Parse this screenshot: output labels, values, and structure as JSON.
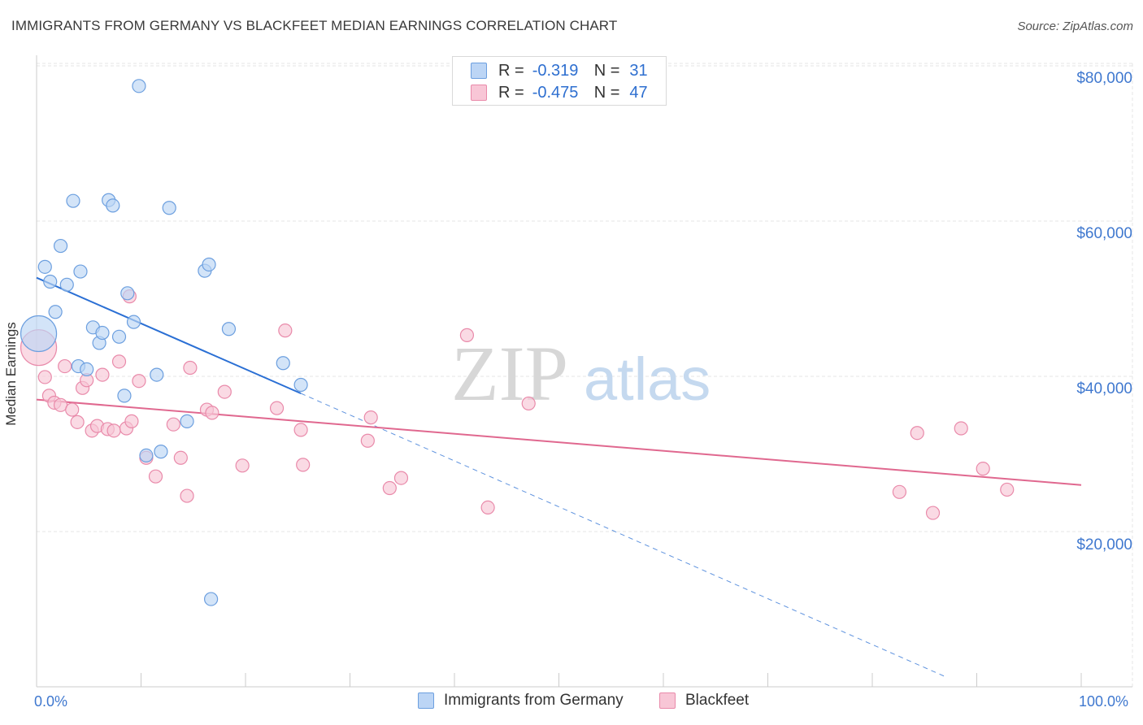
{
  "title": "IMMIGRANTS FROM GERMANY VS BLACKFEET MEDIAN EARNINGS CORRELATION CHART",
  "source": "Source: ZipAtlas.com",
  "watermark": {
    "zip": "ZIP",
    "atlas": "atlas"
  },
  "legend": {
    "r_label": "R =",
    "n_label": "N =",
    "series": [
      {
        "r": "-0.319",
        "n": "31"
      },
      {
        "r": "-0.475",
        "n": "47"
      }
    ]
  },
  "colors": {
    "blue_fill": "#bcd5f5",
    "blue_stroke": "#6c9fdf",
    "blue_line": "#2a6fd4",
    "pink_fill": "#f8c6d6",
    "pink_stroke": "#e98aaa",
    "pink_line": "#e0688f",
    "grid": "#e4e4e4",
    "axis_text": "#3f78cf"
  },
  "chart_data": {
    "type": "scatter",
    "title": "IMMIGRANTS FROM GERMANY VS BLACKFEET MEDIAN EARNINGS CORRELATION CHART",
    "xlabel": "",
    "ylabel": "Median Earnings",
    "xlim": [
      0,
      100
    ],
    "ylim": [
      0,
      82000
    ],
    "x_tick_labels": [
      "0.0%",
      "100.0%"
    ],
    "y_ticks": [
      20000,
      40000,
      60000,
      80000
    ],
    "y_tick_labels": [
      "$20,000",
      "$40,000",
      "$60,000",
      "$80,000"
    ],
    "grid": true,
    "legend_position": "top-center",
    "series": [
      {
        "name": "Immigrants from Germany",
        "color": "blue",
        "points": [
          {
            "x": 0.2,
            "y": 45500,
            "big": true
          },
          {
            "x": 0.8,
            "y": 54100
          },
          {
            "x": 1.3,
            "y": 52200
          },
          {
            "x": 1.8,
            "y": 48300
          },
          {
            "x": 2.3,
            "y": 56800
          },
          {
            "x": 2.9,
            "y": 51800
          },
          {
            "x": 3.5,
            "y": 62600
          },
          {
            "x": 4.2,
            "y": 53500
          },
          {
            "x": 4.0,
            "y": 41300
          },
          {
            "x": 4.8,
            "y": 40900
          },
          {
            "x": 5.4,
            "y": 46300
          },
          {
            "x": 6.0,
            "y": 44300
          },
          {
            "x": 6.3,
            "y": 45600
          },
          {
            "x": 6.9,
            "y": 62700
          },
          {
            "x": 7.3,
            "y": 62000
          },
          {
            "x": 7.9,
            "y": 45100
          },
          {
            "x": 8.4,
            "y": 37500
          },
          {
            "x": 8.7,
            "y": 50700
          },
          {
            "x": 9.3,
            "y": 47000
          },
          {
            "x": 9.8,
            "y": 77400
          },
          {
            "x": 10.5,
            "y": 29800
          },
          {
            "x": 11.5,
            "y": 40200
          },
          {
            "x": 11.9,
            "y": 30300
          },
          {
            "x": 12.7,
            "y": 61700
          },
          {
            "x": 14.4,
            "y": 34200
          },
          {
            "x": 16.1,
            "y": 53600
          },
          {
            "x": 16.5,
            "y": 54400
          },
          {
            "x": 16.7,
            "y": 11300
          },
          {
            "x": 18.4,
            "y": 46100
          },
          {
            "x": 23.6,
            "y": 41700
          },
          {
            "x": 25.3,
            "y": 38900
          }
        ],
        "trendline": {
          "x0": 0,
          "y0": 52700,
          "x1": 25.3,
          "y1": 37800,
          "dashed_to_x": 87,
          "dashed_to_y": 1300
        }
      },
      {
        "name": "Blackfeet",
        "color": "pink",
        "points": [
          {
            "x": 0.2,
            "y": 43700,
            "big": true
          },
          {
            "x": 0.8,
            "y": 39900
          },
          {
            "x": 1.2,
            "y": 37500
          },
          {
            "x": 1.7,
            "y": 36600
          },
          {
            "x": 2.3,
            "y": 36300
          },
          {
            "x": 2.7,
            "y": 41300
          },
          {
            "x": 3.4,
            "y": 35700
          },
          {
            "x": 3.9,
            "y": 34100
          },
          {
            "x": 4.4,
            "y": 38500
          },
          {
            "x": 4.8,
            "y": 39500
          },
          {
            "x": 5.3,
            "y": 33000
          },
          {
            "x": 5.8,
            "y": 33600
          },
          {
            "x": 6.3,
            "y": 40200
          },
          {
            "x": 6.8,
            "y": 33200
          },
          {
            "x": 7.4,
            "y": 33000
          },
          {
            "x": 7.9,
            "y": 41900
          },
          {
            "x": 8.6,
            "y": 33300
          },
          {
            "x": 9.1,
            "y": 34200
          },
          {
            "x": 8.9,
            "y": 50300
          },
          {
            "x": 9.8,
            "y": 39400
          },
          {
            "x": 10.5,
            "y": 29500
          },
          {
            "x": 11.4,
            "y": 27100
          },
          {
            "x": 13.1,
            "y": 33800
          },
          {
            "x": 13.8,
            "y": 29500
          },
          {
            "x": 14.4,
            "y": 24600
          },
          {
            "x": 14.7,
            "y": 41100
          },
          {
            "x": 16.3,
            "y": 35700
          },
          {
            "x": 16.8,
            "y": 35300
          },
          {
            "x": 18.0,
            "y": 38000
          },
          {
            "x": 19.7,
            "y": 28500
          },
          {
            "x": 23.0,
            "y": 35900
          },
          {
            "x": 23.8,
            "y": 45900
          },
          {
            "x": 25.3,
            "y": 33100
          },
          {
            "x": 25.5,
            "y": 28600
          },
          {
            "x": 31.7,
            "y": 31700
          },
          {
            "x": 32.0,
            "y": 34700
          },
          {
            "x": 33.8,
            "y": 25600
          },
          {
            "x": 34.9,
            "y": 26900
          },
          {
            "x": 41.2,
            "y": 45300
          },
          {
            "x": 43.2,
            "y": 23100
          },
          {
            "x": 47.1,
            "y": 36500
          },
          {
            "x": 82.6,
            "y": 25100
          },
          {
            "x": 84.3,
            "y": 32700
          },
          {
            "x": 85.8,
            "y": 22400
          },
          {
            "x": 88.5,
            "y": 33300
          },
          {
            "x": 90.6,
            "y": 28100
          },
          {
            "x": 92.9,
            "y": 25400
          }
        ],
        "trendline": {
          "x0": 0,
          "y0": 37000,
          "x1": 100,
          "y1": 26000
        }
      }
    ]
  },
  "bottom_legend": [
    "Immigrants from Germany",
    "Blackfeet"
  ]
}
